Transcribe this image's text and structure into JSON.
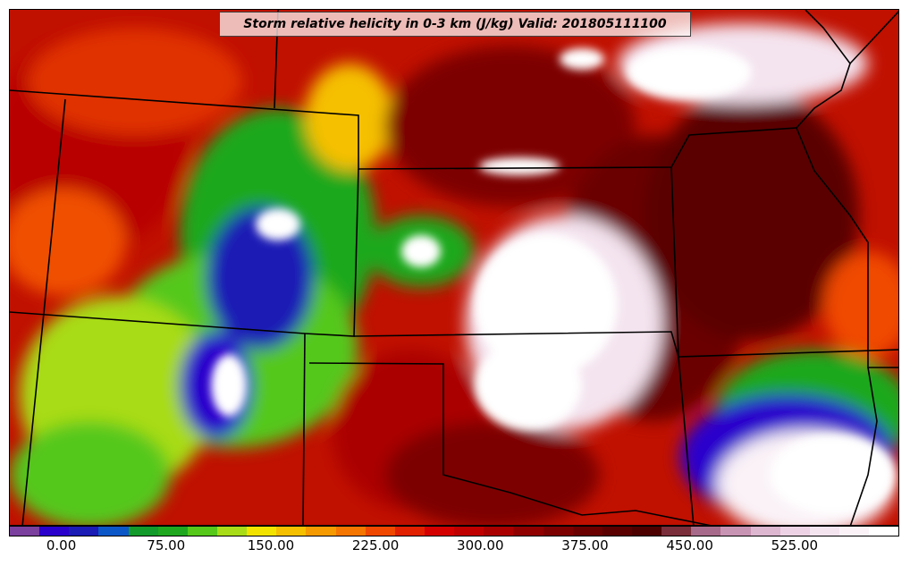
{
  "map": {
    "title": "Storm relative helicity in 0-3 km (J/kg) Valid: 201805111100",
    "field": "storm-relative-helicity",
    "region": "Central United States",
    "colors": {
      "background_low": "#d97a00",
      "border_line": "#000000"
    },
    "colorbar": {
      "colors": [
        "#7b3f9e",
        "#2a00cc",
        "#1b1bb5",
        "#0b57c8",
        "#129a2a",
        "#1fa81f",
        "#55c81a",
        "#a8dc18",
        "#f2e400",
        "#f5c000",
        "#f59a00",
        "#f57600",
        "#f04800",
        "#e02000",
        "#d40000",
        "#c00000",
        "#aa0000",
        "#900000",
        "#7d0000",
        "#6a0000",
        "#5a0000",
        "#4d0000",
        "#7a2d3a",
        "#a86a8a",
        "#c894b4",
        "#ddb6d0",
        "#ecd2e4",
        "#f4e4ef",
        "#faf2f7",
        "#ffffff"
      ],
      "tick_labels": [
        "0.00",
        "75.00",
        "150.00",
        "225.00",
        "300.00",
        "375.00",
        "450.00",
        "525.00"
      ],
      "tick_values": [
        0,
        75,
        150,
        225,
        300,
        375,
        450,
        525
      ],
      "min": -37.5,
      "max": 600
    }
  }
}
